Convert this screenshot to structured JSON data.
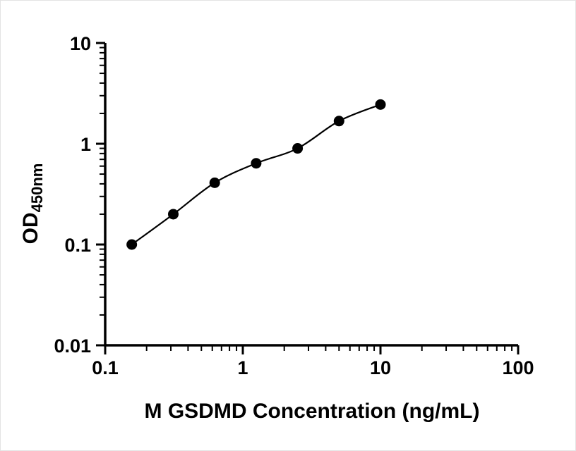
{
  "chart_data": {
    "type": "scatter",
    "title": "",
    "xlabel": "M GSDMD Concentration (ng/mL)",
    "ylabel_main": "OD",
    "ylabel_sub": "450nm",
    "xscale": "log",
    "yscale": "log",
    "xlim": [
      0.1,
      100
    ],
    "ylim": [
      0.01,
      10
    ],
    "x_ticks": [
      0.1,
      1,
      10,
      100
    ],
    "y_ticks": [
      0.01,
      0.1,
      1,
      10
    ],
    "x": [
      0.156,
      0.3125,
      0.625,
      1.25,
      2.5,
      5,
      10
    ],
    "y": [
      0.1,
      0.2,
      0.41,
      0.64,
      0.9,
      1.68,
      2.45
    ],
    "curve": "smooth-fit-through-points",
    "grid": false,
    "legend": "none",
    "marker_color": "#000000",
    "line_color": "#000000",
    "background_color": "#ffffff"
  }
}
